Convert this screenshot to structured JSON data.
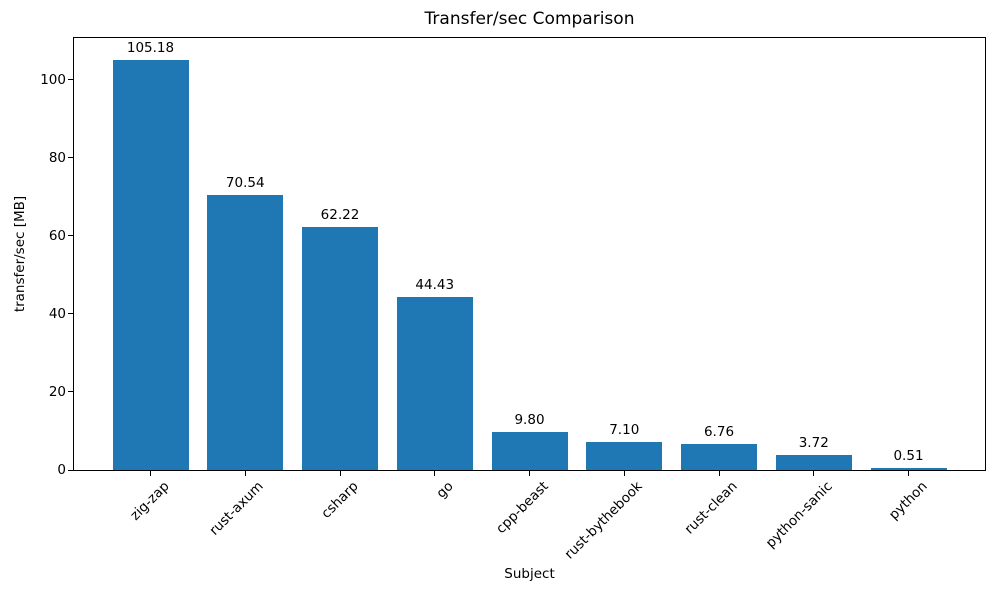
{
  "chart_data": {
    "type": "bar",
    "title": "Transfer/sec Comparison",
    "xlabel": "Subject",
    "ylabel": "transfer/sec [MB]",
    "categories": [
      "zig-zap",
      "rust-axum",
      "csharp",
      "go",
      "cpp-beast",
      "rust-bythebook",
      "rust-clean",
      "python-sanic",
      "python"
    ],
    "values": [
      105.18,
      70.54,
      62.22,
      44.43,
      9.8,
      7.1,
      6.76,
      3.72,
      0.51
    ],
    "value_labels": [
      "105.18",
      "70.54",
      "62.22",
      "44.43",
      "9.80",
      "7.10",
      "6.76",
      "3.72",
      "0.51"
    ],
    "y_ticks": [
      0,
      20,
      40,
      60,
      80,
      100
    ],
    "ylim": [
      0,
      110.7
    ],
    "x_tick_rotation_deg": 45,
    "bar_color": "#1f77b4",
    "text_color": "#000000",
    "background_color": "#ffffff",
    "grid": false,
    "legend": null
  }
}
